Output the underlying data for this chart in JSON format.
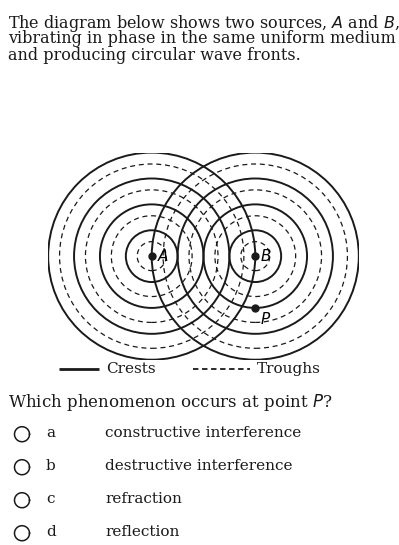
{
  "title_line1": "The diagram below shows two sources, ",
  "title_A": "A",
  "title_and": " and ",
  "title_B": "B",
  "title_comma": ",",
  "title_line2": "vibrating in phase in the same uniform medium",
  "title_line3": "and producing circular wave fronts.",
  "question_text": "Which phenomenon occurs at point ",
  "question_P": "P",
  "question_end": "?",
  "legend_solid": "Crests",
  "legend_dashed": "Troughs",
  "source_A": [
    -1.0,
    0.0
  ],
  "source_B": [
    1.0,
    0.0
  ],
  "point_P": [
    1.0,
    -1.0
  ],
  "solid_radii": [
    0.5,
    1.0,
    1.5,
    2.0
  ],
  "dashed_radii": [
    0.28,
    0.78,
    1.28,
    1.78
  ],
  "choices": [
    "a",
    "b",
    "c",
    "d"
  ],
  "choice_texts": [
    "constructive interference",
    "destructive interference",
    "refraction",
    "reflection"
  ],
  "bg_color": "#ffffff",
  "line_color": "#1a1a1a",
  "font_size_title": 11.5,
  "font_size_question": 12,
  "font_size_choices": 11,
  "font_size_legend": 11
}
